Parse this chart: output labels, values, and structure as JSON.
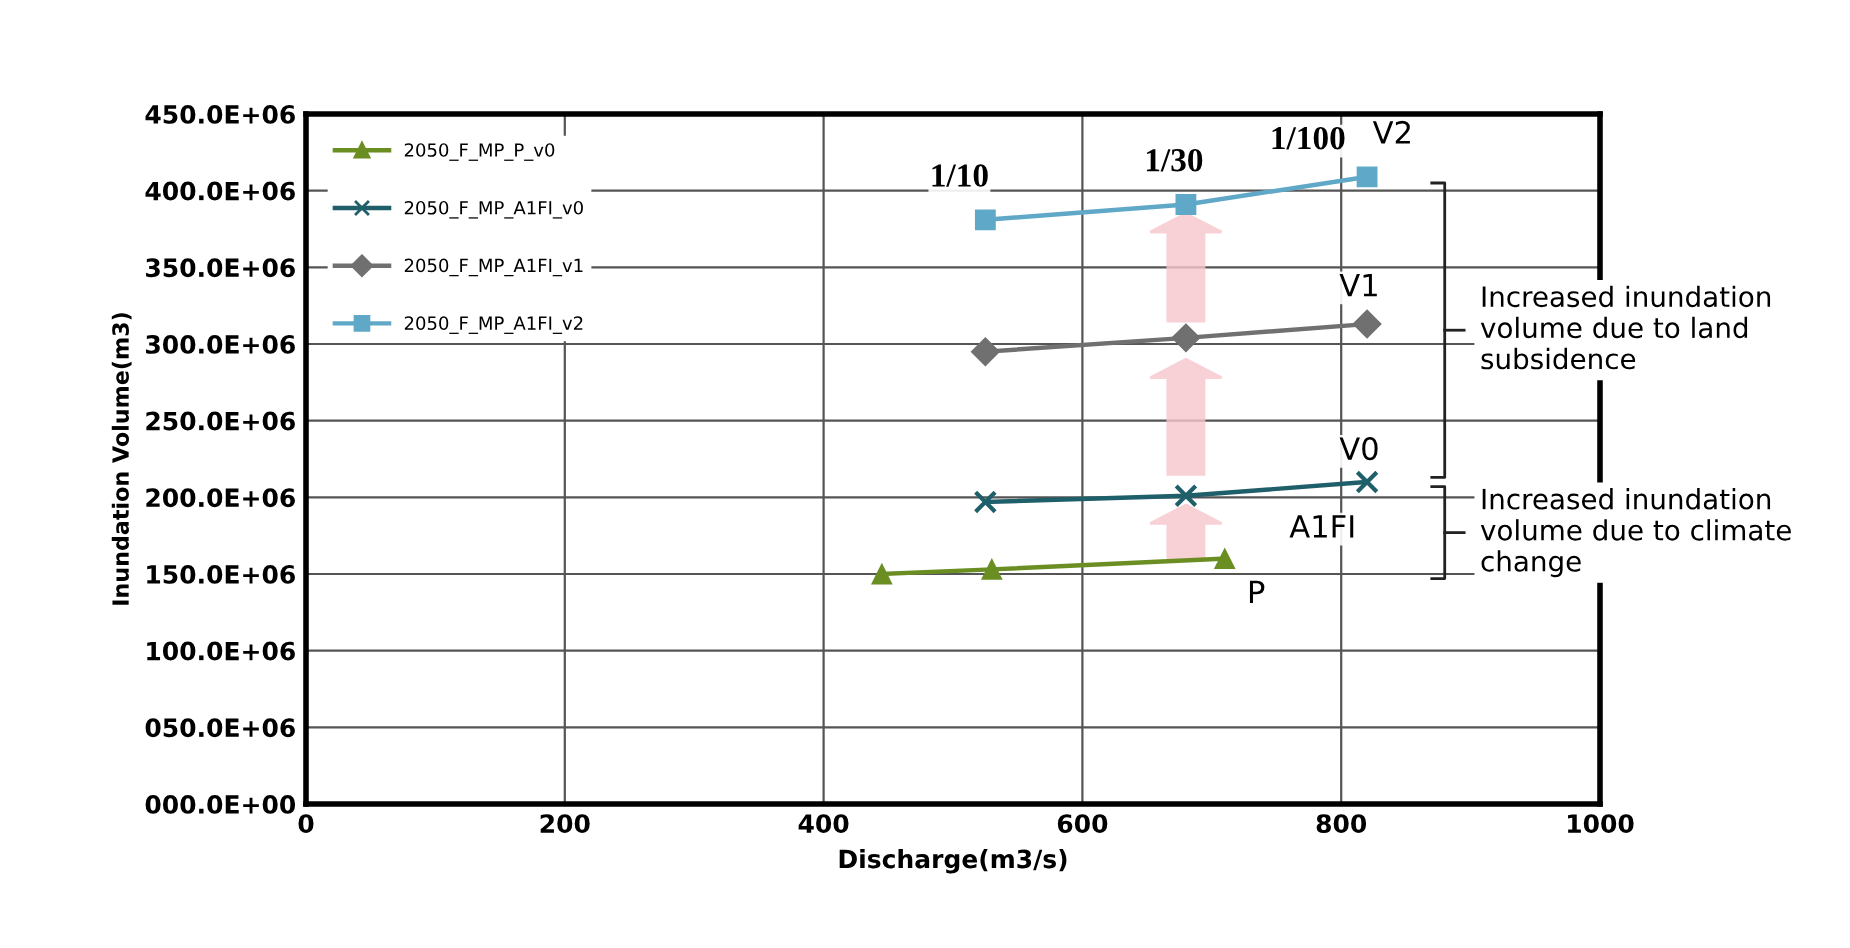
{
  "chart_data": {
    "type": "line",
    "xlabel": "Discharge(m3/s)",
    "ylabel": "Inundation Volume(m3)",
    "xlim": [
      0,
      1000
    ],
    "xticks": [
      0,
      200,
      400,
      600,
      800,
      1000
    ],
    "ylim": [
      0,
      450000000
    ],
    "yticks": [
      {
        "value": 0,
        "label": "000.0E+00"
      },
      {
        "value": 50000000,
        "label": "050.0E+06"
      },
      {
        "value": 100000000,
        "label": "100.0E+06"
      },
      {
        "value": 150000000,
        "label": "150.0E+06"
      },
      {
        "value": 200000000,
        "label": "200.0E+06"
      },
      {
        "value": 250000000,
        "label": "250.0E+06"
      },
      {
        "value": 300000000,
        "label": "300.0E+06"
      },
      {
        "value": 350000000,
        "label": "350.0E+06"
      },
      {
        "value": 400000000,
        "label": "400.0E+06"
      },
      {
        "value": 450000000,
        "label": "450.0E+06"
      }
    ],
    "grid": true,
    "legend": "top left",
    "series": [
      {
        "name": "2050_F_MP_P_v0",
        "color": "#6b8e23",
        "marker": "triangle",
        "x": [
          445,
          530,
          710
        ],
        "values": [
          150000000,
          153000000,
          160000000
        ]
      },
      {
        "name": "2050_F_MP_A1FI_v0",
        "color": "#1f5f6a",
        "marker": "cross",
        "x": [
          525,
          680,
          820
        ],
        "values": [
          197000000,
          201000000,
          210000000
        ]
      },
      {
        "name": "2050_F_MP_A1FI_v1",
        "color": "#707070",
        "marker": "diamond",
        "x": [
          525,
          680,
          820
        ],
        "values": [
          295000000,
          304000000,
          313000000
        ]
      },
      {
        "name": "2050_F_MP_A1FI_v2",
        "color": "#5fa8c8",
        "marker": "square",
        "x": [
          525,
          680,
          820
        ],
        "values": [
          381000000,
          391000000,
          409000000
        ]
      }
    ],
    "annotations": [
      {
        "text": "1/10",
        "x": 525,
        "y": 381000000
      },
      {
        "text": "1/30",
        "x": 680,
        "y": 391000000
      },
      {
        "text": "1/100",
        "x": 820,
        "y": 409000000
      },
      {
        "text": "V2",
        "x": 820,
        "y": 409000000
      },
      {
        "text": "V1",
        "x": 820,
        "y": 313000000
      },
      {
        "text": "V0",
        "x": 820,
        "y": 210000000
      },
      {
        "text": "A1FI",
        "x": 820,
        "y": 210000000
      },
      {
        "text": "P",
        "x": 710,
        "y": 160000000
      },
      "Increased inundation volume due to land subsidence",
      "Increased inundation volume due to climate change"
    ]
  }
}
